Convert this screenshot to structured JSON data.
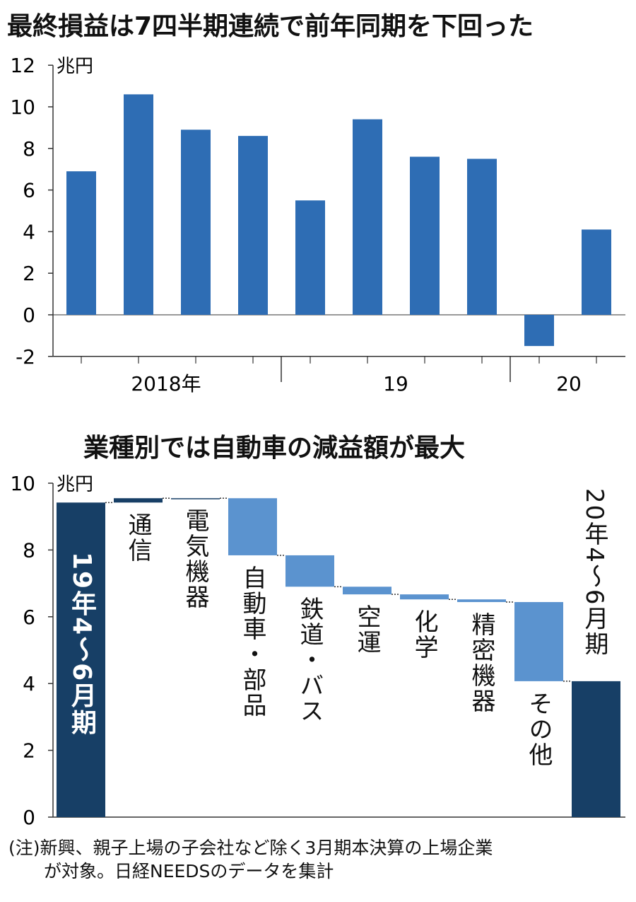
{
  "chart_data": [
    {
      "type": "bar",
      "title": "最終損益は7四半期連続で前年同期を下回った",
      "ylabel": "兆円",
      "ylim": [
        -2,
        12
      ],
      "yticks": [
        "12",
        "10",
        "8",
        "6",
        "4",
        "2",
        "0",
        "-2"
      ],
      "group_labels": [
        "2018年",
        "19",
        "20"
      ],
      "values": [
        6.9,
        10.6,
        8.9,
        8.6,
        5.5,
        9.4,
        7.6,
        7.5,
        -1.5,
        4.1
      ],
      "colors": {
        "bar": "#2e6db4"
      }
    },
    {
      "type": "waterfall",
      "title": "業種別では自動車の減益額が最大",
      "ylabel": "兆円",
      "ylim": [
        0,
        10
      ],
      "yticks": [
        "10",
        "8",
        "6",
        "4",
        "2",
        "0"
      ],
      "categories": [
        "19年4〜6月期",
        "通信",
        "電気機器",
        "自動車・部品",
        "鉄道・バス",
        "空運",
        "化学",
        "精密機器",
        "その他",
        "20年4〜6月期"
      ],
      "start": [
        0,
        9.42,
        9.55,
        9.55,
        7.84,
        6.9,
        6.67,
        6.52,
        6.44,
        0
      ],
      "end": [
        9.42,
        9.55,
        9.55,
        7.84,
        6.9,
        6.67,
        6.52,
        6.44,
        4.07,
        4.07
      ],
      "colors": {
        "total": "#173f66",
        "decrease": "#5b93cf",
        "increase": "#173f66"
      }
    }
  ],
  "note": [
    "(注)新興、親子上場の子会社など除く3月期本決算の上場企業",
    "　　が対象。日経NEEDSのデータを集計"
  ]
}
